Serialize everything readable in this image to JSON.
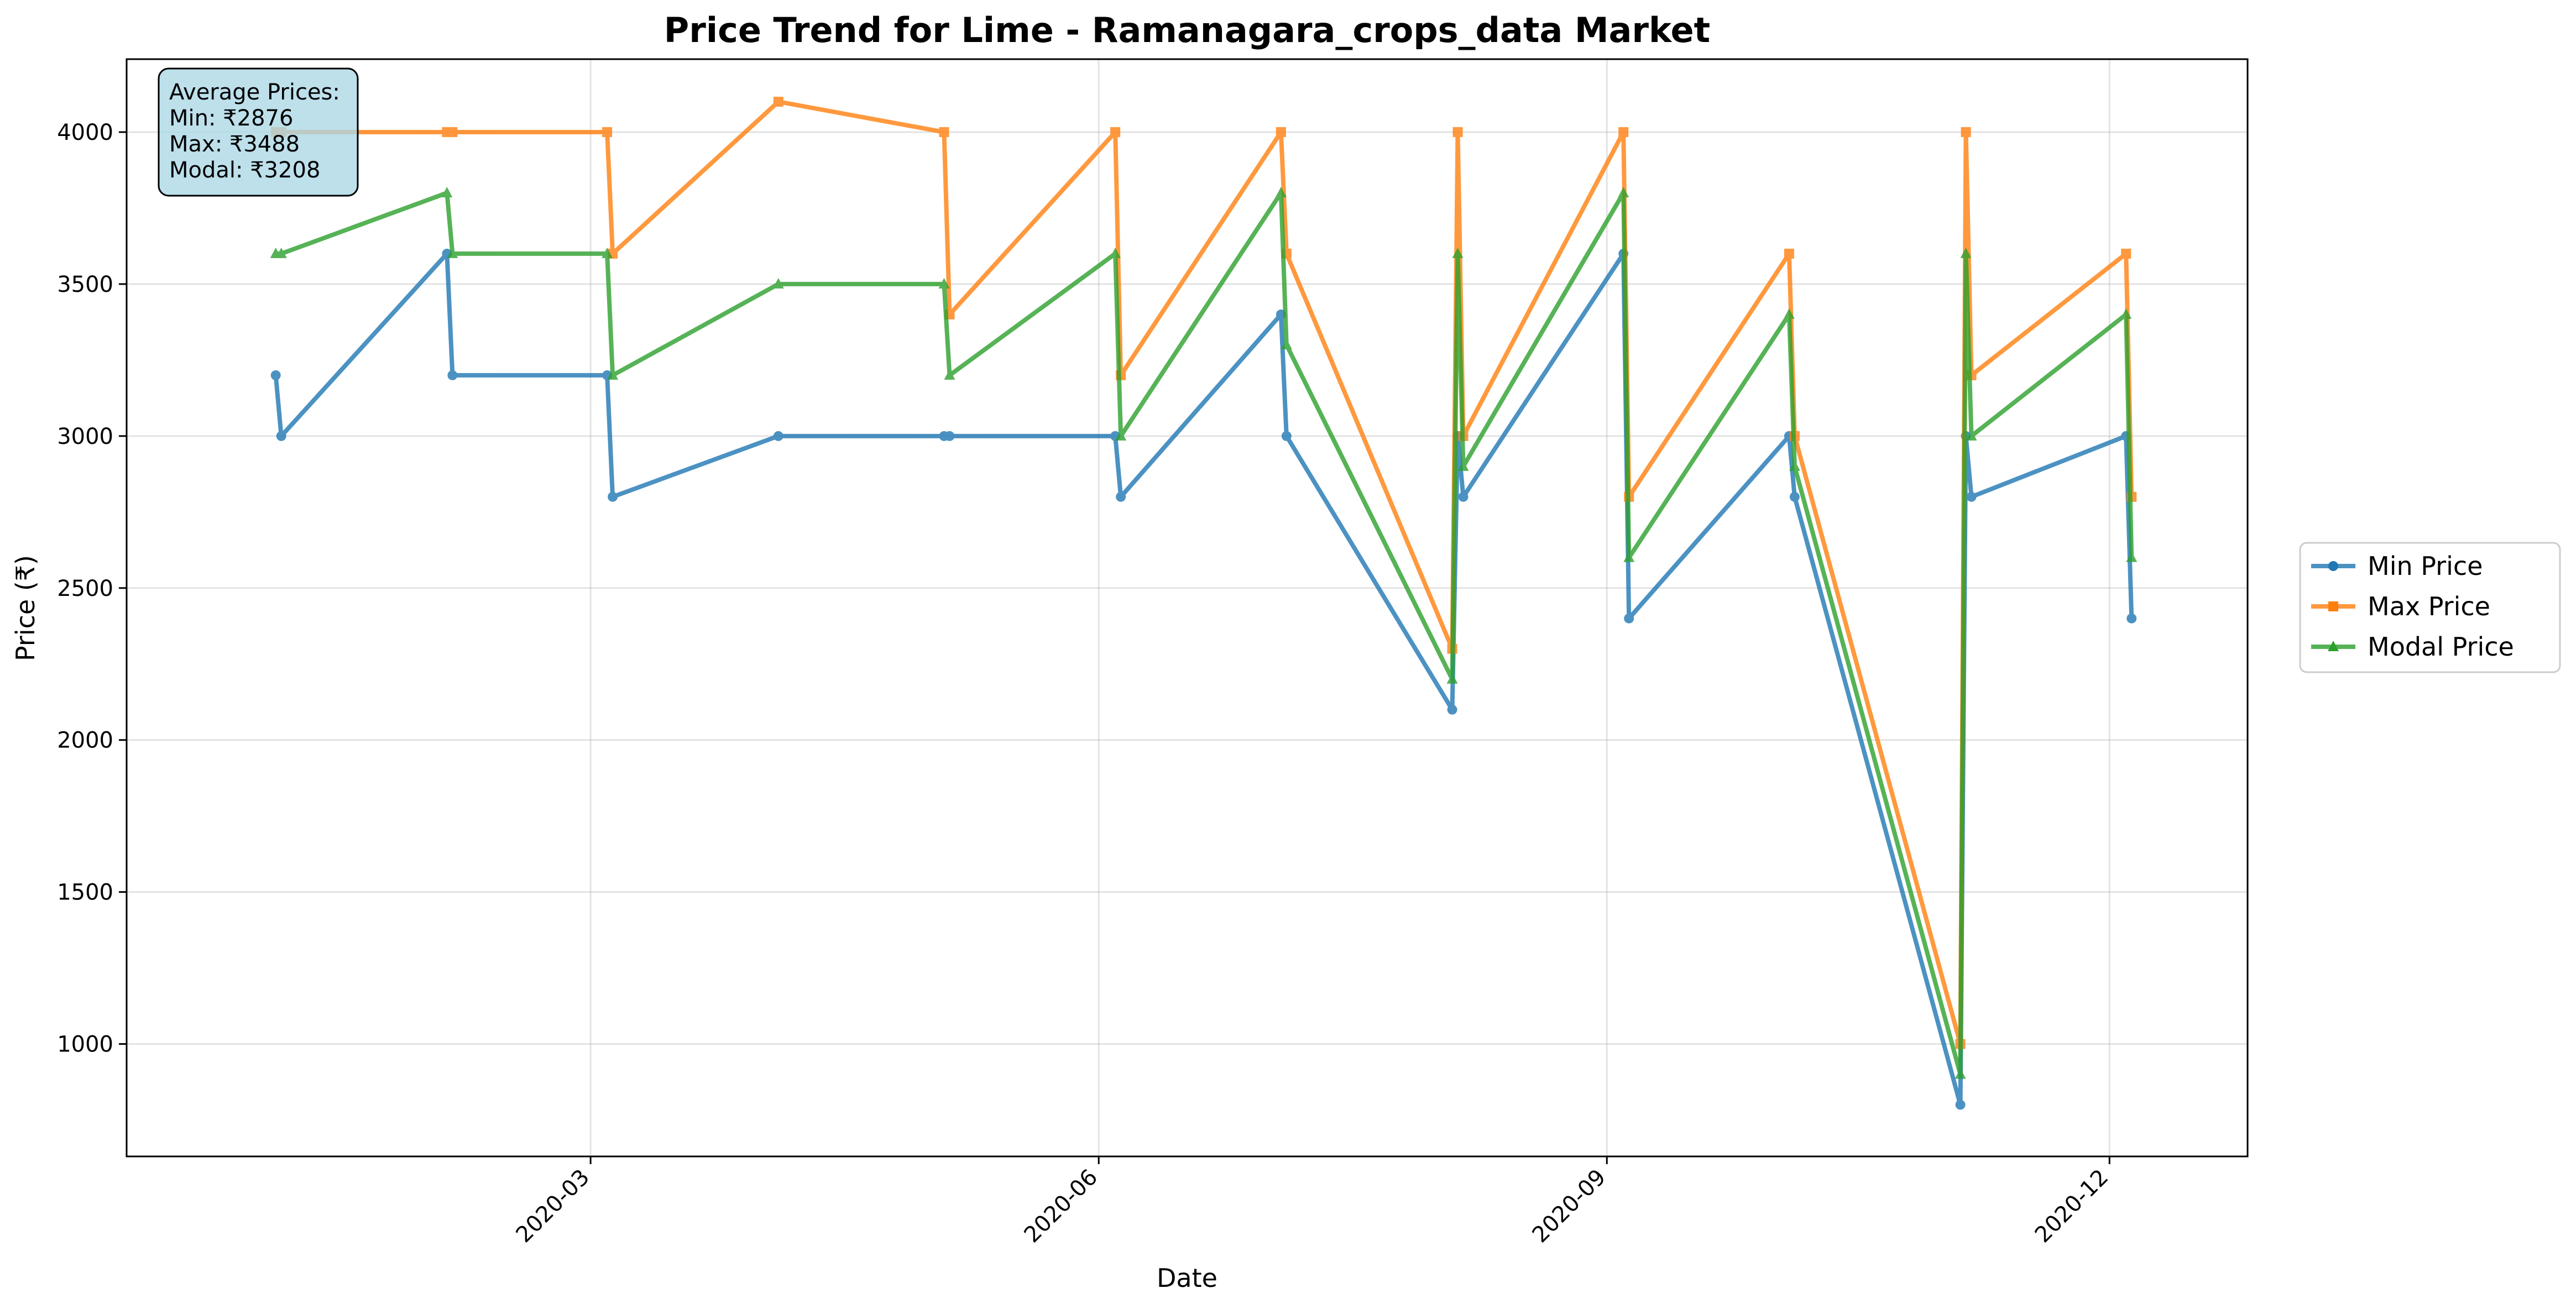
{
  "chart_data": {
    "type": "line",
    "title": "Price Trend for Lime - Ramanagara_crops_data Market",
    "xlabel": "Date",
    "ylabel": "Price (₹)",
    "xlim": [
      "2019-12-08",
      "2020-12-26"
    ],
    "ylim": [
      630,
      4240
    ],
    "x_ticks": [
      {
        "date": "2020-03-01",
        "label": "2020-03"
      },
      {
        "date": "2020-06-01",
        "label": "2020-06"
      },
      {
        "date": "2020-09-01",
        "label": "2020-09"
      },
      {
        "date": "2020-12-01",
        "label": "2020-12"
      }
    ],
    "y_ticks": [
      1000,
      1500,
      2000,
      2500,
      3000,
      3500,
      4000
    ],
    "grid": true,
    "legend_position": "right-outside",
    "dates": [
      "2020-01-04",
      "2020-01-05",
      "2020-02-04",
      "2020-02-05",
      "2020-03-04",
      "2020-03-05",
      "2020-04-04",
      "2020-05-04",
      "2020-05-05",
      "2020-06-04",
      "2020-06-05",
      "2020-07-04",
      "2020-07-05",
      "2020-08-04",
      "2020-08-05",
      "2020-08-06",
      "2020-09-04",
      "2020-09-05",
      "2020-10-04",
      "2020-10-05",
      "2020-11-04",
      "2020-11-05",
      "2020-11-06",
      "2020-12-04",
      "2020-12-05"
    ],
    "series": [
      {
        "name": "Min Price",
        "color": "#1f77b4",
        "marker": "circle",
        "values": [
          3200,
          3000,
          3600,
          3200,
          3200,
          2800,
          3000,
          3000,
          3000,
          3000,
          2800,
          3400,
          3000,
          2100,
          3000,
          2800,
          3600,
          2400,
          3000,
          2800,
          800,
          3000,
          2800,
          3000,
          2400
        ]
      },
      {
        "name": "Max Price",
        "color": "#ff7f0e",
        "marker": "square",
        "values": [
          4000,
          4000,
          4000,
          4000,
          4000,
          3600,
          4100,
          4000,
          3400,
          4000,
          3200,
          4000,
          3600,
          2300,
          4000,
          3000,
          4000,
          2800,
          3600,
          3000,
          1000,
          4000,
          3200,
          3600,
          2800
        ]
      },
      {
        "name": "Modal Price",
        "color": "#2ca02c",
        "marker": "triangle",
        "values": [
          3600,
          3600,
          3800,
          3600,
          3600,
          3200,
          3500,
          3500,
          3200,
          3600,
          3000,
          3800,
          3300,
          2200,
          3600,
          2900,
          3800,
          2600,
          3400,
          2900,
          900,
          3600,
          3000,
          3400,
          2600
        ]
      }
    ],
    "annotation": {
      "lines": [
        "Average Prices:",
        "Min: ₹2876",
        "Max: ₹3488",
        "Modal: ₹3208"
      ],
      "box_color": "#add8e6",
      "position": "top-left"
    }
  }
}
